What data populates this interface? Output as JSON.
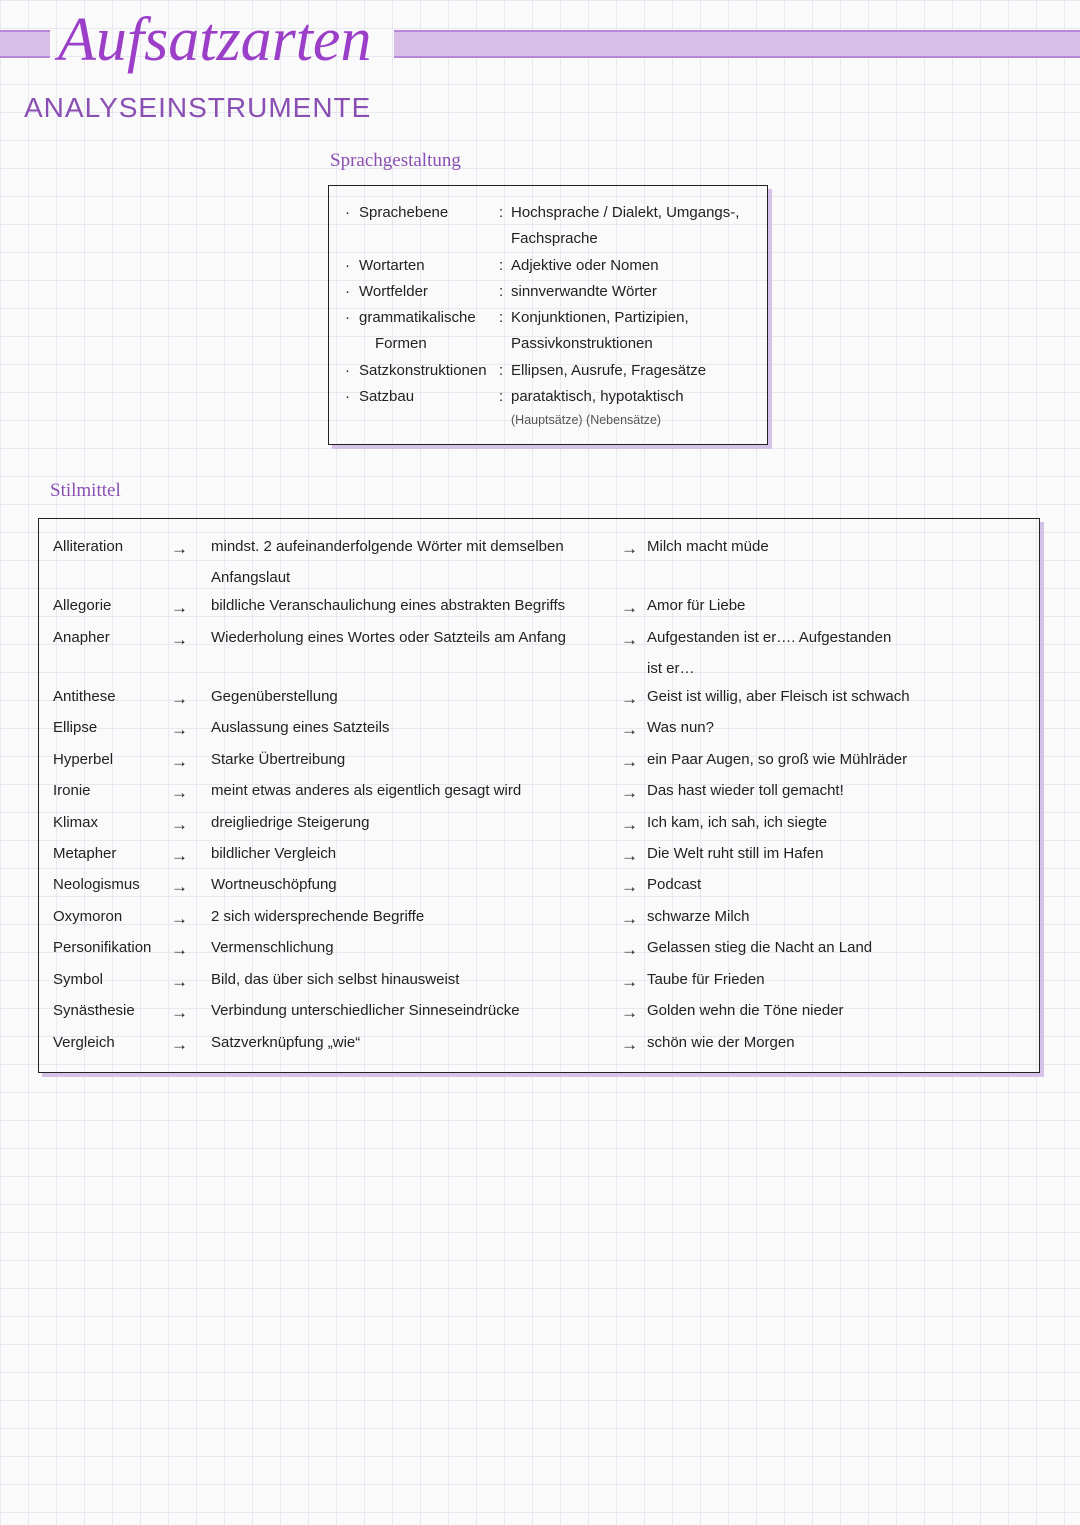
{
  "colors": {
    "page_bg": "#fafafa",
    "grid_line": "#e8e8f0",
    "header_band": "#d9bfe8",
    "header_band_border": "#b888d8",
    "title_purple": "#9b3fc9",
    "heading_purple": "#8a4fb3",
    "box_border": "#222222",
    "box_shadow": "#d5c2e8",
    "text": "#222222",
    "note_text": "#555555"
  },
  "header": {
    "title": "Aufsatzarten",
    "subtitle": "ANALYSEINSTRUMENTE"
  },
  "sprachgestaltung": {
    "title": "Sprachgestaltung",
    "rows": [
      {
        "term": "Sprachebene",
        "desc": "Hochsprache / Dialekt, Umgangs-, Fachsprache"
      },
      {
        "term": "Wortarten",
        "desc": "Adjektive oder Nomen"
      },
      {
        "term": "Wortfelder",
        "desc": "sinnverwandte Wörter"
      },
      {
        "term": "grammatikalische Formen",
        "desc": "Konjunktionen, Partizipien, Passivkonstruktionen"
      },
      {
        "term": "Satzkonstruktionen",
        "desc": "Ellipsen, Ausrufe, Fragesätze"
      },
      {
        "term": "Satzbau",
        "desc": "parataktisch, hypotaktisch",
        "note": "(Hauptsätze)     (Nebensätze)"
      }
    ]
  },
  "stilmittel": {
    "title": "Stilmittel",
    "rows": [
      {
        "term": "Alliteration",
        "def": "mindst. 2 aufeinanderfolgende Wörter mit demselben Anfangslaut",
        "ex": "Milch macht müde"
      },
      {
        "term": "Allegorie",
        "def": "bildliche Veranschaulichung eines abstrakten Begriffs",
        "ex": "Amor für Liebe"
      },
      {
        "term": "Anapher",
        "def": "Wiederholung eines Wortes oder Satzteils am Anfang",
        "ex": "Aufgestanden ist er…. Aufgestanden ist er…"
      },
      {
        "term": "Antithese",
        "def": "Gegenüberstellung",
        "ex": "Geist ist willig, aber Fleisch ist schwach"
      },
      {
        "term": "Ellipse",
        "def": "Auslassung eines Satzteils",
        "ex": "Was nun?"
      },
      {
        "term": "Hyperbel",
        "def": "Starke Übertreibung",
        "ex": "ein Paar Augen, so groß wie Mühlräder"
      },
      {
        "term": "Ironie",
        "def": "meint etwas anderes als eigentlich gesagt wird",
        "ex": "Das hast wieder toll gemacht!"
      },
      {
        "term": "Klimax",
        "def": "dreigliedrige Steigerung",
        "ex": "Ich kam, ich sah, ich siegte"
      },
      {
        "term": "Metapher",
        "def": "bildlicher Vergleich",
        "ex": "Die Welt ruht still im Hafen"
      },
      {
        "term": "Neologismus",
        "def": "Wortneuschöpfung",
        "ex": "Podcast"
      },
      {
        "term": "Oxymoron",
        "def": "2 sich widersprechende Begriffe",
        "ex": "schwarze Milch"
      },
      {
        "term": "Personifikation",
        "def": "Vermenschlichung",
        "ex": "Gelassen stieg die Nacht an Land"
      },
      {
        "term": "Symbol",
        "def": "Bild, das über sich selbst hinausweist",
        "ex": "Taube für Frieden"
      },
      {
        "term": "Synästhesie",
        "def": "Verbindung unterschiedlicher Sinneseindrücke",
        "ex": "Golden wehn die Töne nieder"
      },
      {
        "term": "Vergleich",
        "def": "Satzverknüpfung „wie“",
        "ex": "schön wie der Morgen"
      }
    ]
  },
  "glyphs": {
    "arrow": "→",
    "bullet": "·",
    "colon": ":"
  }
}
